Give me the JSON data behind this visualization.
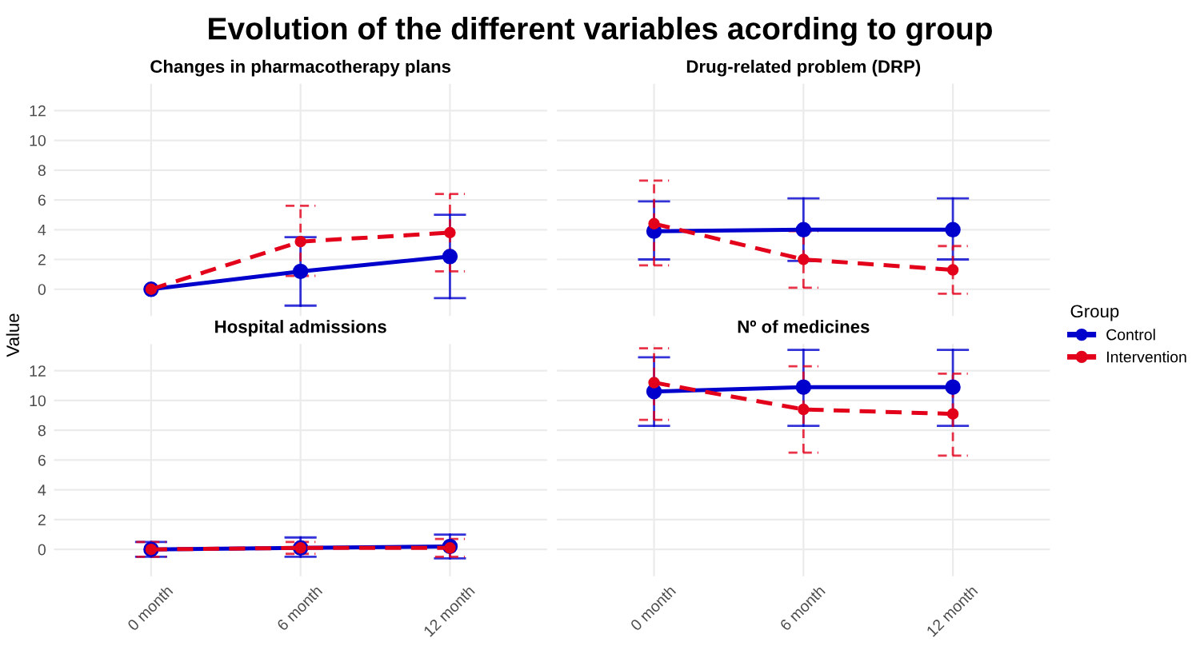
{
  "chart_data": [
    {
      "type": "line",
      "title": "Changes in pharmacotherapy plans",
      "annotations": [
        "Evolution of the different variables acording to group"
      ],
      "ylabel": "Value",
      "categories": [
        "0 month",
        "6 month",
        "12 month"
      ],
      "ylim": [
        -1.8,
        13.8
      ],
      "yticks": [
        0,
        2,
        4,
        6,
        8,
        10,
        12
      ],
      "tick_labels": "y",
      "grid": true,
      "marker": "circle",
      "legend": "right",
      "legend_title": "Group",
      "series": [
        {
          "name": "Control",
          "color": "#0000cd",
          "line_style": "solid",
          "values": [
            0,
            1.2,
            2.2
          ],
          "errors": [
            null,
            [
              -1.1,
              3.5
            ],
            [
              -0.6,
              5.0
            ]
          ]
        },
        {
          "name": "Intervention",
          "color": "#e3001b",
          "line_style": "dashed",
          "values": [
            0,
            3.2,
            3.8
          ],
          "errors": [
            null,
            [
              0.9,
              5.6
            ],
            [
              1.2,
              6.4
            ]
          ]
        }
      ]
    },
    {
      "type": "line",
      "title": "Drug-related problem (DRP)",
      "categories": [
        "0 month",
        "6 month",
        "12 month"
      ],
      "ylim": [
        -1.8,
        13.8
      ],
      "yticks": [
        0,
        2,
        4,
        6,
        8,
        10,
        12
      ],
      "tick_labels": false,
      "grid": true,
      "marker": "circle",
      "series": [
        {
          "name": "Control",
          "color": "#0000cd",
          "line_style": "solid",
          "values": [
            3.9,
            4.0,
            4.0
          ],
          "errors": [
            [
              2.0,
              5.9
            ],
            [
              1.9,
              6.1
            ],
            [
              2.0,
              6.1
            ]
          ]
        },
        {
          "name": "Intervention",
          "color": "#e3001b",
          "line_style": "dashed",
          "values": [
            4.4,
            2.0,
            1.3
          ],
          "errors": [
            [
              1.6,
              7.3
            ],
            [
              0.1,
              3.9
            ],
            [
              -0.3,
              2.9
            ]
          ]
        }
      ]
    },
    {
      "type": "line",
      "title": "Hospital admissions",
      "categories": [
        "0 month",
        "6 month",
        "12 month"
      ],
      "ylim": [
        -1.8,
        13.8
      ],
      "yticks": [
        0,
        2,
        4,
        6,
        8,
        10,
        12
      ],
      "grid": true,
      "marker": "circle",
      "series": [
        {
          "name": "Control",
          "color": "#0000cd",
          "line_style": "solid",
          "values": [
            0,
            0.1,
            0.2
          ],
          "errors": [
            [
              -0.5,
              0.5
            ],
            [
              -0.5,
              0.8
            ],
            [
              -0.6,
              1.0
            ]
          ]
        },
        {
          "name": "Intervention",
          "color": "#e3001b",
          "line_style": "dashed",
          "values": [
            0,
            0.1,
            0.1
          ],
          "errors": [
            [
              -0.5,
              0.5
            ],
            [
              -0.3,
              0.5
            ],
            [
              -0.5,
              0.7
            ]
          ]
        }
      ]
    },
    {
      "type": "line",
      "title": "Nº of medicines",
      "categories": [
        "0 month",
        "6 month",
        "12 month"
      ],
      "ylim": [
        -1.8,
        13.8
      ],
      "yticks": [
        0,
        2,
        4,
        6,
        8,
        10,
        12
      ],
      "tick_labels": "x",
      "grid": true,
      "marker": "circle",
      "series": [
        {
          "name": "Control",
          "color": "#0000cd",
          "line_style": "solid",
          "values": [
            10.6,
            10.9,
            10.9
          ],
          "errors": [
            [
              8.3,
              12.9
            ],
            [
              8.3,
              13.4
            ],
            [
              8.3,
              13.4
            ]
          ]
        },
        {
          "name": "Intervention",
          "color": "#e3001b",
          "line_style": "dashed",
          "values": [
            11.2,
            9.4,
            9.1
          ],
          "errors": [
            [
              8.7,
              13.5
            ],
            [
              6.5,
              12.3
            ],
            [
              6.3,
              11.8
            ]
          ]
        }
      ]
    }
  ]
}
